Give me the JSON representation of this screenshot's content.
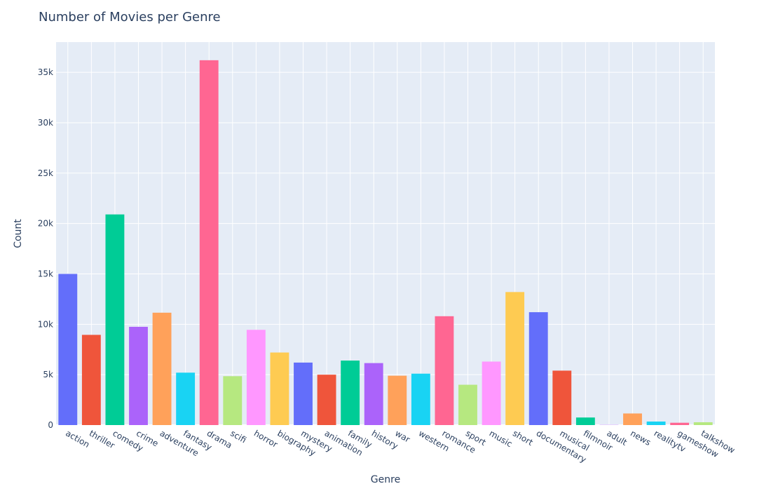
{
  "chart_data": {
    "type": "bar",
    "title": "Number of Movies per Genre",
    "xlabel": "Genre",
    "ylabel": "Count",
    "ylim": [
      0,
      38000
    ],
    "y_ticks": [
      0,
      5000,
      10000,
      15000,
      20000,
      25000,
      30000,
      35000
    ],
    "y_tick_labels": [
      "0",
      "5k",
      "10k",
      "15k",
      "20k",
      "25k",
      "30k",
      "35k"
    ],
    "grid": true,
    "categories": [
      "action",
      "thriller",
      "comedy",
      "crime",
      "adventure",
      "fantasy",
      "drama",
      "scifi",
      "horror",
      "biography",
      "mystery",
      "animation",
      "family",
      "history",
      "war",
      "western",
      "romance",
      "sport",
      "music",
      "short",
      "documentary",
      "musical",
      "filmnoir",
      "adult",
      "news",
      "realitytv",
      "gameshow",
      "talkshow"
    ],
    "values": [
      15000,
      8950,
      20900,
      9750,
      11150,
      5200,
      36200,
      4850,
      9450,
      7200,
      6200,
      5000,
      6400,
      6150,
      4900,
      5100,
      10800,
      4000,
      6300,
      13200,
      11200,
      5400,
      750,
      20,
      1150,
      350,
      230,
      280
    ],
    "colors": [
      "#636efa",
      "#EF553B",
      "#00cc96",
      "#ab63fa",
      "#FFA15A",
      "#19d3f3",
      "#FF6692",
      "#B6E880",
      "#FF97FF",
      "#FECB52"
    ]
  }
}
